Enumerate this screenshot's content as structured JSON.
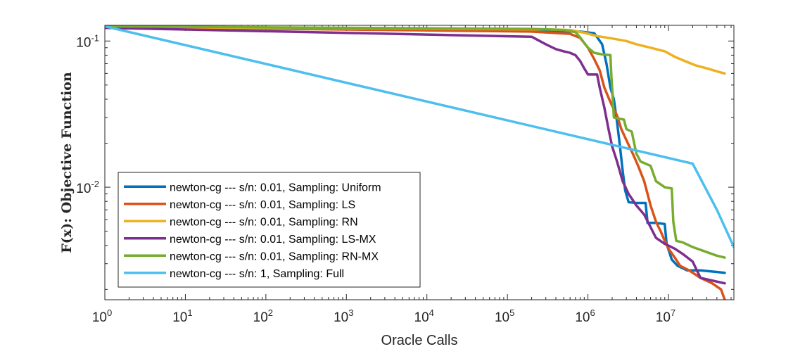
{
  "chart_data": {
    "type": "line",
    "title": "",
    "xlabel": "Oracle Calls",
    "ylabel": "F(x): Objective Function",
    "xscale": "log",
    "yscale": "log",
    "xlim": [
      1,
      65000000
    ],
    "ylim": [
      0.0017,
      0.128
    ],
    "x_ticks": [
      {
        "value": 1,
        "label": "10^0"
      },
      {
        "value": 10,
        "label": "10^1"
      },
      {
        "value": 100,
        "label": "10^2"
      },
      {
        "value": 1000,
        "label": "10^3"
      },
      {
        "value": 10000,
        "label": "10^4"
      },
      {
        "value": 100000,
        "label": "10^5"
      },
      {
        "value": 1000000,
        "label": "10^6"
      },
      {
        "value": 10000000,
        "label": "10^7"
      }
    ],
    "y_ticks": [
      {
        "value": 0.1,
        "label": "10^-1"
      },
      {
        "value": 0.01,
        "label": "10^-2"
      }
    ],
    "legend_position": "bottom-left",
    "series": [
      {
        "name": "newton-cg --- s/n: 0.01, Sampling: Uniform",
        "color": "#0072BD",
        "points": [
          [
            1,
            0.125
          ],
          [
            200000,
            0.117
          ],
          [
            400000,
            0.116
          ],
          [
            800000,
            0.116
          ],
          [
            1200000,
            0.113
          ],
          [
            1500000,
            0.095
          ],
          [
            1700000,
            0.07
          ],
          [
            1900000,
            0.048
          ],
          [
            2100000,
            0.04
          ],
          [
            2300000,
            0.028
          ],
          [
            2500000,
            0.019
          ],
          [
            2700000,
            0.013
          ],
          [
            2900000,
            0.0095
          ],
          [
            3200000,
            0.0079
          ],
          [
            4000000,
            0.0078
          ],
          [
            5200000,
            0.0078
          ],
          [
            5500000,
            0.0057
          ],
          [
            7000000,
            0.0057
          ],
          [
            9000000,
            0.0056
          ],
          [
            9500000,
            0.0041
          ],
          [
            11000000,
            0.0032
          ],
          [
            13000000,
            0.0029
          ],
          [
            17000000,
            0.0027
          ],
          [
            25000000,
            0.0027
          ],
          [
            50000000,
            0.0026
          ]
        ]
      },
      {
        "name": "newton-cg --- s/n: 0.01, Sampling: LS",
        "color": "#D95319",
        "points": [
          [
            1,
            0.125
          ],
          [
            200000,
            0.116
          ],
          [
            600000,
            0.112
          ],
          [
            800000,
            0.105
          ],
          [
            1000000,
            0.09
          ],
          [
            1200000,
            0.075
          ],
          [
            1400000,
            0.063
          ],
          [
            1600000,
            0.048
          ],
          [
            1800000,
            0.041
          ],
          [
            2000000,
            0.036
          ],
          [
            2300000,
            0.031
          ],
          [
            2600000,
            0.025
          ],
          [
            3000000,
            0.021
          ],
          [
            3600000,
            0.017
          ],
          [
            4200000,
            0.014
          ],
          [
            5000000,
            0.011
          ],
          [
            6000000,
            0.0075
          ],
          [
            7000000,
            0.0058
          ],
          [
            8000000,
            0.005
          ],
          [
            9000000,
            0.0043
          ],
          [
            10000000,
            0.0038
          ],
          [
            12000000,
            0.0033
          ],
          [
            14000000,
            0.0029
          ],
          [
            18000000,
            0.0027
          ],
          [
            25000000,
            0.0024
          ],
          [
            35000000,
            0.0022
          ],
          [
            45000000,
            0.002
          ],
          [
            50000000,
            0.0017
          ]
        ]
      },
      {
        "name": "newton-cg --- s/n: 0.01, Sampling: RN",
        "color": "#EDB120",
        "points": [
          [
            1,
            0.125
          ],
          [
            300000,
            0.12
          ],
          [
            600000,
            0.119
          ],
          [
            900000,
            0.114
          ],
          [
            1300000,
            0.108
          ],
          [
            2000000,
            0.104
          ],
          [
            3000000,
            0.1
          ],
          [
            4000000,
            0.095
          ],
          [
            6000000,
            0.09
          ],
          [
            9000000,
            0.085
          ],
          [
            12000000,
            0.078
          ],
          [
            16000000,
            0.073
          ],
          [
            22000000,
            0.068
          ],
          [
            30000000,
            0.065
          ],
          [
            40000000,
            0.062
          ],
          [
            50000000,
            0.06
          ]
        ]
      },
      {
        "name": "newton-cg --- s/n: 0.01, Sampling: LS-MX",
        "color": "#7E2F8E",
        "points": [
          [
            1,
            0.123
          ],
          [
            200000,
            0.107
          ],
          [
            300000,
            0.095
          ],
          [
            400000,
            0.088
          ],
          [
            500000,
            0.085
          ],
          [
            600000,
            0.083
          ],
          [
            700000,
            0.08
          ],
          [
            800000,
            0.073
          ],
          [
            900000,
            0.065
          ],
          [
            1000000,
            0.059
          ],
          [
            1100000,
            0.059
          ],
          [
            1300000,
            0.059
          ],
          [
            1400000,
            0.048
          ],
          [
            1600000,
            0.035
          ],
          [
            1800000,
            0.025
          ],
          [
            2000000,
            0.019
          ],
          [
            2300000,
            0.015
          ],
          [
            2700000,
            0.011
          ],
          [
            3200000,
            0.009
          ],
          [
            4000000,
            0.0075
          ],
          [
            5000000,
            0.0065
          ],
          [
            7000000,
            0.0045
          ],
          [
            9000000,
            0.0041
          ],
          [
            12000000,
            0.0038
          ],
          [
            15000000,
            0.0035
          ],
          [
            20000000,
            0.0031
          ],
          [
            25000000,
            0.0024
          ],
          [
            35000000,
            0.0023
          ],
          [
            50000000,
            0.0022
          ]
        ]
      },
      {
        "name": "newton-cg --- s/n: 0.01, Sampling: RN-MX",
        "color": "#77AC30",
        "points": [
          [
            1,
            0.126
          ],
          [
            200000,
            0.121
          ],
          [
            500000,
            0.119
          ],
          [
            700000,
            0.115
          ],
          [
            800000,
            0.106
          ],
          [
            900000,
            0.097
          ],
          [
            1000000,
            0.09
          ],
          [
            1200000,
            0.083
          ],
          [
            1500000,
            0.081
          ],
          [
            1900000,
            0.08
          ],
          [
            1950000,
            0.06
          ],
          [
            2000000,
            0.047
          ],
          [
            2100000,
            0.03
          ],
          [
            2800000,
            0.029
          ],
          [
            3000000,
            0.025
          ],
          [
            3500000,
            0.024
          ],
          [
            4000000,
            0.017
          ],
          [
            4500000,
            0.015
          ],
          [
            6000000,
            0.014
          ],
          [
            7000000,
            0.011
          ],
          [
            9000000,
            0.01
          ],
          [
            11000000,
            0.0098
          ],
          [
            11500000,
            0.0058
          ],
          [
            12500000,
            0.0043
          ],
          [
            15000000,
            0.0042
          ],
          [
            20000000,
            0.0039
          ],
          [
            30000000,
            0.0036
          ],
          [
            40000000,
            0.0034
          ],
          [
            50000000,
            0.0033
          ]
        ]
      },
      {
        "name": "newton-cg --- s/n: 1, Sampling: Full",
        "color": "#4DBEEE",
        "points": [
          [
            1,
            0.126
          ],
          [
            20000000,
            0.0145
          ],
          [
            40000000,
            0.007
          ],
          [
            65000000,
            0.0039
          ]
        ]
      }
    ]
  }
}
